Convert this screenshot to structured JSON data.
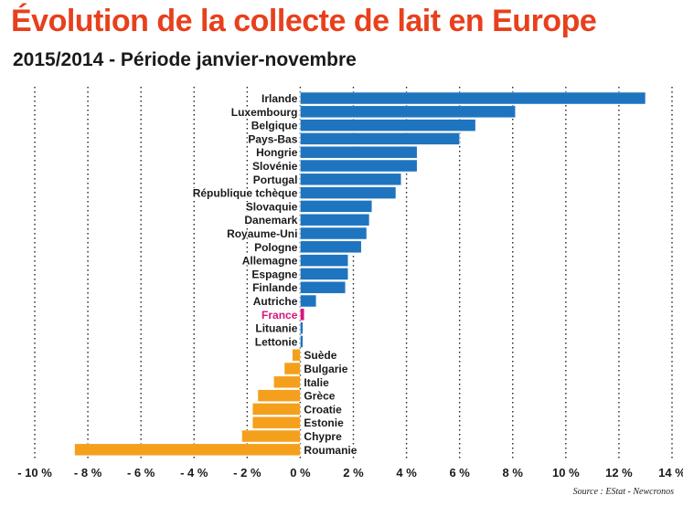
{
  "title": "Évolution de la collecte de lait en Europe",
  "subtitle": "2015/2014 - Période janvier-novembre",
  "source": "Source : EStat - Newcronos",
  "colors": {
    "title": "#e8401c",
    "positive": "#1f74bf",
    "negative": "#f5a01c",
    "highlight_label": "#d6157a",
    "highlight_bar": "#d6157a",
    "grid": "#222222"
  },
  "chart_data": {
    "type": "bar",
    "orientation": "horizontal",
    "unit": "%",
    "xlim": [
      -10,
      14
    ],
    "xticks": [
      -10,
      -8,
      -6,
      -4,
      -2,
      0,
      2,
      4,
      6,
      8,
      10,
      12,
      14
    ],
    "xtick_labels": [
      "- 10 %",
      "- 8 %",
      "- 6 %",
      "- 4 %",
      "- 2 %",
      "0 %",
      "2 %",
      "4 %",
      "6 %",
      "8 %",
      "10 %",
      "12 %",
      "14 %"
    ],
    "grid": "vertical dotted",
    "highlight": "France",
    "categories": [
      "Irlande",
      "Luxembourg",
      "Belgique",
      "Pays-Bas",
      "Hongrie",
      "Slovénie",
      "Portugal",
      "République tchèque",
      "Slovaquie",
      "Danemark",
      "Royaume-Uni",
      "Pologne",
      "Allemagne",
      "Espagne",
      "Finlande",
      "Autriche",
      "France",
      "Lituanie",
      "Lettonie",
      "Suède",
      "Bulgarie",
      "Italie",
      "Grèce",
      "Croatie",
      "Estonie",
      "Chypre",
      "Roumanie"
    ],
    "values": [
      13.0,
      8.1,
      6.6,
      6.0,
      4.4,
      4.4,
      3.8,
      3.6,
      2.7,
      2.6,
      2.5,
      2.3,
      1.8,
      1.8,
      1.7,
      0.6,
      0.15,
      0.1,
      0.1,
      -0.3,
      -0.6,
      -1.0,
      -1.6,
      -1.8,
      -1.8,
      -2.2,
      -8.5
    ]
  }
}
